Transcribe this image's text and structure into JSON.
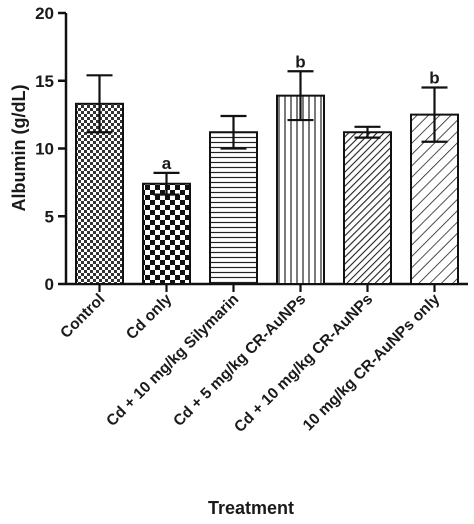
{
  "chart_data": {
    "type": "bar",
    "title": "",
    "xlabel": "Treatment",
    "ylabel": "Albumin (g/dL)",
    "ylim": [
      0,
      20
    ],
    "yticks": [
      "0",
      "5",
      "10",
      "15",
      "20"
    ],
    "grid": false,
    "categories": [
      "Control",
      "Cd only",
      "Cd + 10 mg/kg Silymarin",
      "Cd + 5 mg/kg CR-AuNPs",
      "Cd +  10 mg/kg CR-AuNPs",
      "10 mg/kg CR-AuNPs only"
    ],
    "values": [
      13.3,
      7.4,
      11.2,
      13.9,
      11.2,
      12.5
    ],
    "errors": [
      2.1,
      0.8,
      1.2,
      1.8,
      0.4,
      2.0
    ],
    "significance": [
      "",
      "a",
      "",
      "b",
      "",
      "b"
    ],
    "patterns": [
      "checker-fine",
      "checker-coarse",
      "horizontal-lines",
      "vertical-lines",
      "diagonal-dense",
      "diagonal-wide"
    ]
  }
}
